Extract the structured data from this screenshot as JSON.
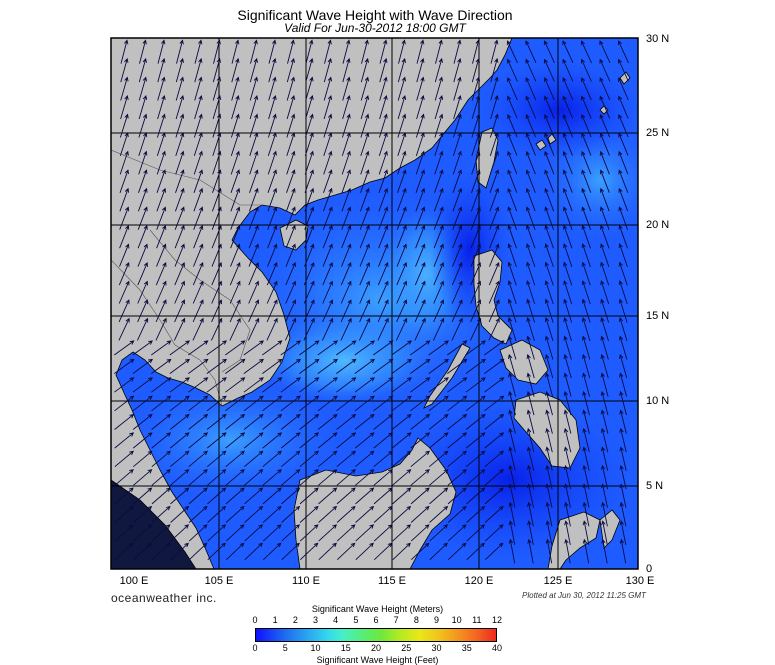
{
  "title": "Significant Wave Height with Wave Direction",
  "subtitle": "Valid For Jun-30-2012 18:00 GMT",
  "lat_labels": [
    "30 N",
    "25 N",
    "20 N",
    "15 N",
    "10 N",
    "5 N",
    "0"
  ],
  "lon_labels": [
    "100 E",
    "105 E",
    "110 E",
    "115 E",
    "120 E",
    "125 E",
    "130 E"
  ],
  "brand": "oceanweather inc.",
  "plotted": "Plotted at Jun 30, 2012 11:25 GMT",
  "legend": {
    "title_meters": "Significant Wave Height (Meters)",
    "title_feet": "Significant Wave Height (Feet)",
    "ticks_meters": [
      "0",
      "1",
      "2",
      "3",
      "4",
      "5",
      "6",
      "7",
      "8",
      "9",
      "10",
      "11",
      "12"
    ],
    "ticks_feet": [
      "0",
      "5",
      "10",
      "15",
      "20",
      "25",
      "30",
      "35",
      "40"
    ]
  },
  "colors": {
    "land": "#c0c0c0",
    "sea_deep": "#0a2cf0",
    "sea_mid": "#2266ff",
    "sea_light": "#33aaff",
    "sea_cyan": "#55ccff",
    "arrow": "#0a0a40",
    "grid": "#000000"
  }
}
